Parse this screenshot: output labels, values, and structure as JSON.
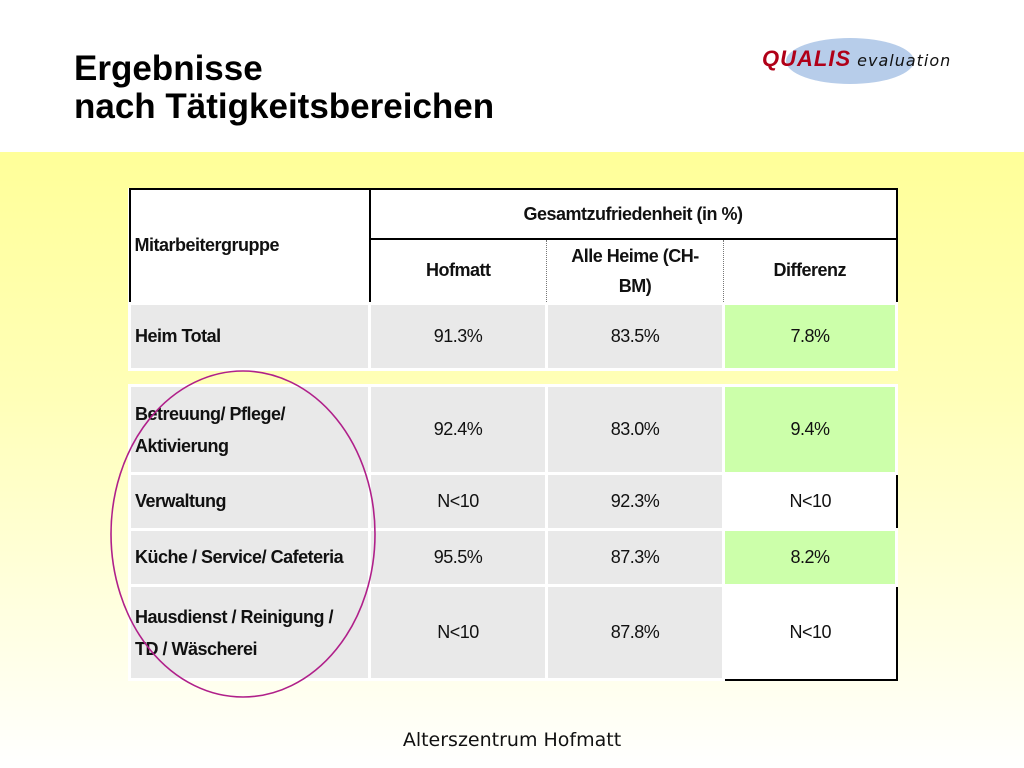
{
  "title": {
    "line1": "Ergebnisse",
    "line2": "nach Tätigkeitsbereichen"
  },
  "logo": {
    "brand": "QUALIS",
    "suffix": "evaluation"
  },
  "table": {
    "header": {
      "group_label": "Mitarbeitergruppe",
      "main_label": "Gesamtzufriedenheit (in %)",
      "col_hofmatt": "Hofmatt",
      "col_alle_line1": "Alle Heime (CH-",
      "col_alle_line2": "BM)",
      "col_diff": "Differenz"
    },
    "total": {
      "label": "Heim Total",
      "hofmatt": "91.3%",
      "alle": "83.5%",
      "diff": "7.8%"
    },
    "rows": [
      {
        "label_line1": "Betreuung/ Pflege/",
        "label_line2": "Aktivierung",
        "hofmatt": "92.4%",
        "alle": "83.0%",
        "diff": "9.4%"
      },
      {
        "label_line1": "Verwaltung",
        "label_line2": "",
        "hofmatt": "N<10",
        "alle": "92.3%",
        "diff": "N<10"
      },
      {
        "label_line1": "Küche / Service/ Cafeteria",
        "label_line2": "",
        "hofmatt": "95.5%",
        "alle": "87.3%",
        "diff": "8.2%"
      },
      {
        "label_line1": "Hausdienst / Reinigung /",
        "label_line2": "TD / Wäscherei",
        "hofmatt": "N<10",
        "alle": "87.8%",
        "diff": "N<10"
      }
    ]
  },
  "footer": "Alterszentrum Hofmatt",
  "colors": {
    "positive_diff": "#ccffaa",
    "cell_grey": "#e9e9e9",
    "highlight_circle": "#b0208a",
    "brand": "#b00018"
  }
}
